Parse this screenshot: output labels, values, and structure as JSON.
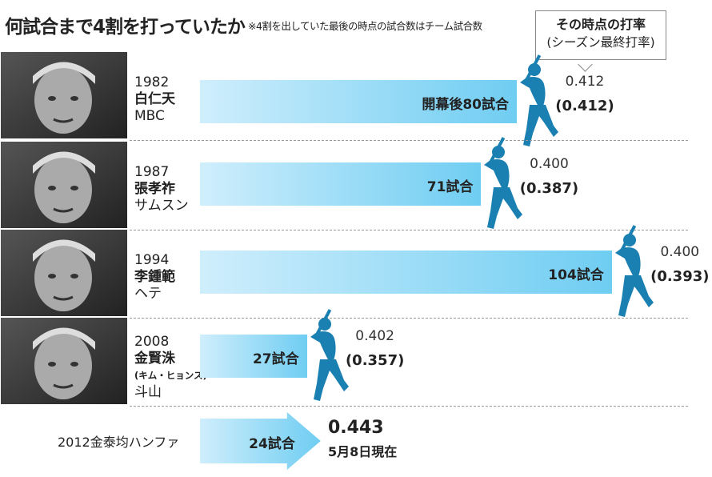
{
  "header": {
    "title": "何試合まで4割を打っていたか",
    "note": "※4割を出していた最後の時点の試合数はチーム試合数",
    "legend_line1": "その時点の打率",
    "legend_line2": "(シーズン最終打率)"
  },
  "colors": {
    "bar_start": "#cfeefc",
    "bar_end": "#6fcdf2",
    "batter": "#1a80b2"
  },
  "chart_data": {
    "type": "bar",
    "orientation": "horizontal",
    "rows": [
      {
        "year": "1982",
        "name": "白仁天",
        "name_reading": "",
        "team": "MBC",
        "games": 80,
        "games_label": "開幕後80試合",
        "avg": "0.412",
        "final_avg": "(0.412)"
      },
      {
        "year": "1987",
        "name": "張孝祚",
        "name_reading": "",
        "team": "サムスン",
        "games": 71,
        "games_label": "71試合",
        "avg": "0.400",
        "final_avg": "(0.387)"
      },
      {
        "year": "1994",
        "name": "李鍾範",
        "name_reading": "",
        "team": "ヘテ",
        "games": 104,
        "games_label": "104試合",
        "avg": "0.400",
        "final_avg": "(0.393)"
      },
      {
        "year": "2008",
        "name": "金賢洙",
        "name_reading": "(キム・ヒョンス)",
        "team": "斗山",
        "games": 27,
        "games_label": "27試合",
        "avg": "0.402",
        "final_avg": "(0.357)"
      }
    ],
    "current": {
      "label": "2012金泰均ハンファ",
      "games": 24,
      "games_label": "24試合",
      "avg": "0.443",
      "as_of": "5月8日現在"
    }
  }
}
